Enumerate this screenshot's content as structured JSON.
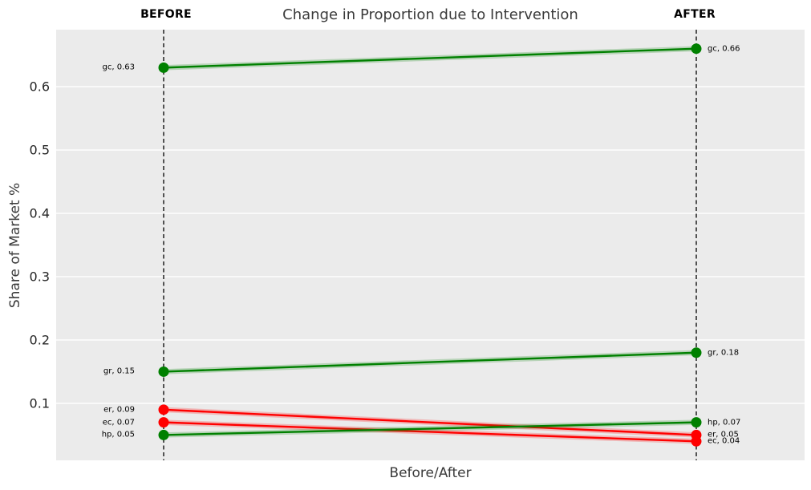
{
  "chart_data": {
    "type": "line",
    "subtype": "slopegraph",
    "title": "Change in Proportion due to Intervention",
    "xlabel": "Before/After",
    "ylabel": "Share of Market %",
    "columns": [
      "BEFORE",
      "AFTER"
    ],
    "yticks": [
      0.1,
      0.2,
      0.3,
      0.4,
      0.5,
      0.6
    ],
    "ylim": [
      0.01,
      0.69
    ],
    "grid": true,
    "legend": "none",
    "series": [
      {
        "name": "gc",
        "before": 0.63,
        "after": 0.66,
        "trend": "increase",
        "color": "#008000",
        "label_before": "gc, 0.63",
        "label_after": "gc, 0.66"
      },
      {
        "name": "gr",
        "before": 0.15,
        "after": 0.18,
        "trend": "increase",
        "color": "#008000",
        "label_before": "gr, 0.15",
        "label_after": "gr, 0.18"
      },
      {
        "name": "er",
        "before": 0.09,
        "after": 0.05,
        "trend": "decrease",
        "color": "#ff0000",
        "label_before": "er, 0.09",
        "label_after": "er, 0.05"
      },
      {
        "name": "ec",
        "before": 0.07,
        "after": 0.04,
        "trend": "decrease",
        "color": "#ff0000",
        "label_before": "ec, 0.07",
        "label_after": "ec, 0.04"
      },
      {
        "name": "hp",
        "before": 0.05,
        "after": 0.07,
        "trend": "increase",
        "color": "#008000",
        "label_before": "hp, 0.05",
        "label_after": "hp, 0.07"
      }
    ],
    "colors": {
      "increase": "#008000",
      "decrease": "#ff0000",
      "plot_background": "#ebebeb",
      "gridline": "#ffffff",
      "vline": "#000000",
      "title_text": "#3a3a3a",
      "tick_text": "#262626",
      "label_text": "#000000"
    }
  }
}
